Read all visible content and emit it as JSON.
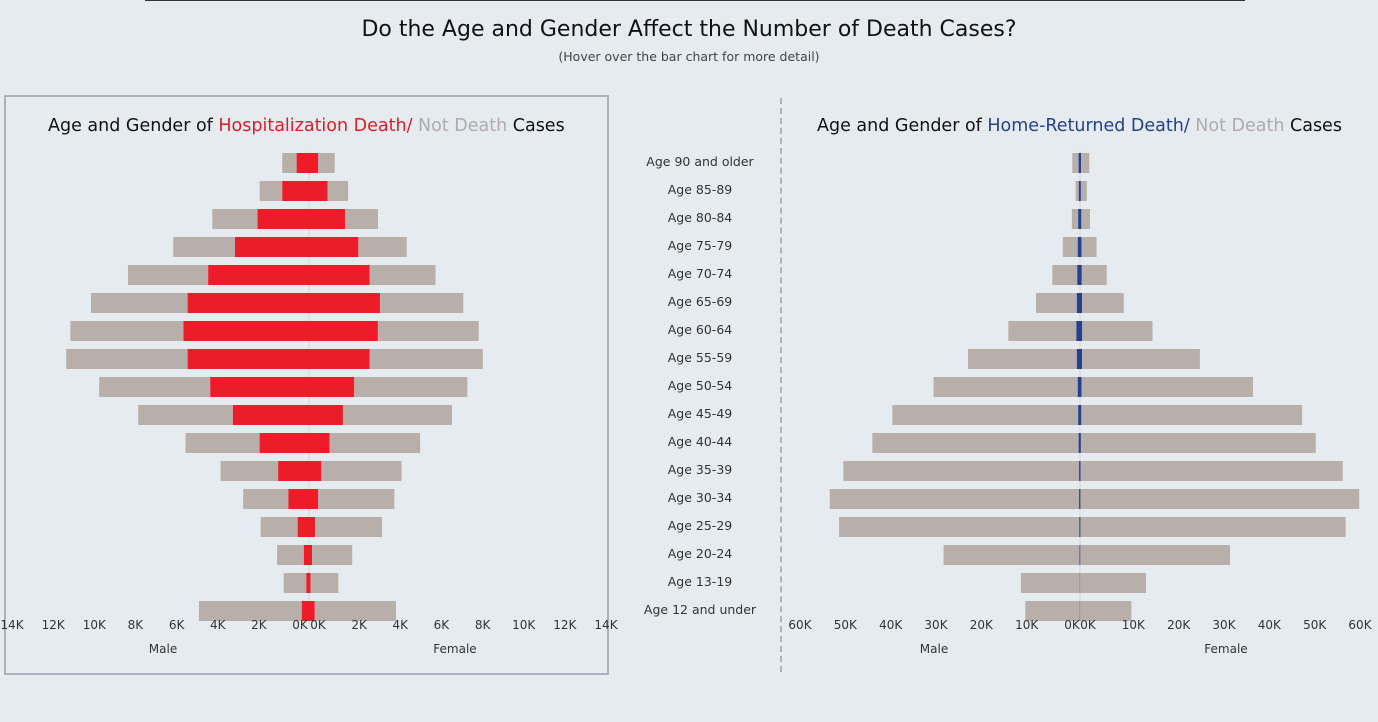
{
  "page": {
    "title": "Do the Age and Gender Affect the Number of Death Cases?",
    "subtitle": "(Hover over the bar chart for more detail)"
  },
  "left_chart_title": {
    "prefix": "Age and Gender of ",
    "death": "Hospitalization Death/",
    "not_death": " Not Death",
    "suffix": " Cases"
  },
  "right_chart_title": {
    "prefix": "Age and Gender of ",
    "death": "Home-Returned Death/",
    "not_death": " Not Death",
    "suffix": " Cases"
  },
  "colors": {
    "hosp_death": "#ec1c28",
    "home_death": "#24408e",
    "not_death": "#b8aeaa",
    "background": "#e6ebf0"
  },
  "chart_data": [
    {
      "type": "bar",
      "orientation": "horizontal-pyramid",
      "title": "Age and Gender of Hospitalization Death/ Not Death Cases",
      "categories": [
        "Age 90 and older",
        "Age 85-89",
        "Age 80-84",
        "Age 75-79",
        "Age 70-74",
        "Age 65-69",
        "Age 60-64",
        "Age 55-59",
        "Age 50-54",
        "Age 45-49",
        "Age 40-44",
        "Age 35-39",
        "Age 30-34",
        "Age 25-29",
        "Age 20-24",
        "Age 13-19",
        "Age 12 and under"
      ],
      "xlabel_left": "Male",
      "xlabel_right": "Female",
      "xlim": [
        0,
        14000
      ],
      "ticks": [
        "14K",
        "12K",
        "10K",
        "8K",
        "6K",
        "4K",
        "2K",
        "0K",
        "0K",
        "2K",
        "4K",
        "6K",
        "8K",
        "10K",
        "12K",
        "14K"
      ],
      "series": [
        {
          "name": "Male Not Death",
          "values": [
            700,
            1100,
            2200,
            3000,
            3900,
            4700,
            5500,
            5900,
            5400,
            4600,
            3600,
            2800,
            2200,
            1800,
            1300,
            1100,
            5000
          ]
        },
        {
          "name": "Male Death",
          "values": [
            600,
            1300,
            2500,
            3600,
            4900,
            5900,
            6100,
            5900,
            4800,
            3700,
            2400,
            1500,
            1000,
            550,
            250,
            130,
            350
          ]
        },
        {
          "name": "Female Death",
          "values": [
            450,
            900,
            1750,
            2400,
            2950,
            3450,
            3350,
            2950,
            2200,
            1650,
            1000,
            600,
            450,
            300,
            150,
            80,
            280
          ]
        },
        {
          "name": "Female Not Death",
          "values": [
            800,
            1000,
            1600,
            2350,
            3200,
            4050,
            4900,
            5500,
            5500,
            5300,
            4400,
            3900,
            3700,
            3250,
            1950,
            1350,
            3950
          ]
        }
      ]
    },
    {
      "type": "bar",
      "orientation": "horizontal-pyramid",
      "title": "Age and Gender of Home-Returned Death/ Not Death Cases",
      "categories": [
        "Age 90 and older",
        "Age 85-89",
        "Age 80-84",
        "Age 75-79",
        "Age 70-74",
        "Age 65-69",
        "Age 60-64",
        "Age 55-59",
        "Age 50-54",
        "Age 45-49",
        "Age 40-44",
        "Age 35-39",
        "Age 30-34",
        "Age 25-29",
        "Age 20-24",
        "Age 13-19",
        "Age 12 and under"
      ],
      "xlabel_left": "Male",
      "xlabel_right": "Female",
      "xlim": [
        0,
        60000
      ],
      "ticks": [
        "60K",
        "50K",
        "40K",
        "30K",
        "20K",
        "10K",
        "0K",
        "0K",
        "10K",
        "20K",
        "30K",
        "40K",
        "50K",
        "60K"
      ],
      "series": [
        {
          "name": "Male Not Death",
          "values": [
            1400,
            700,
            1400,
            3300,
            5500,
            9000,
            15000,
            24000,
            31800,
            41000,
            45500,
            52000,
            55000,
            53000,
            30000,
            13000,
            12000
          ]
        },
        {
          "name": "Male Death",
          "values": [
            300,
            250,
            400,
            500,
            600,
            700,
            800,
            700,
            500,
            400,
            300,
            200,
            200,
            150,
            100,
            50,
            50
          ]
        },
        {
          "name": "Female Death",
          "values": [
            250,
            200,
            300,
            350,
            400,
            450,
            500,
            450,
            350,
            300,
            200,
            150,
            100,
            100,
            80,
            40,
            40
          ]
        },
        {
          "name": "Female Not Death",
          "values": [
            1800,
            1300,
            1900,
            3300,
            5500,
            9200,
            15500,
            26000,
            37800,
            48700,
            51800,
            57800,
            61500,
            58500,
            33000,
            14500,
            11300
          ]
        }
      ]
    }
  ]
}
